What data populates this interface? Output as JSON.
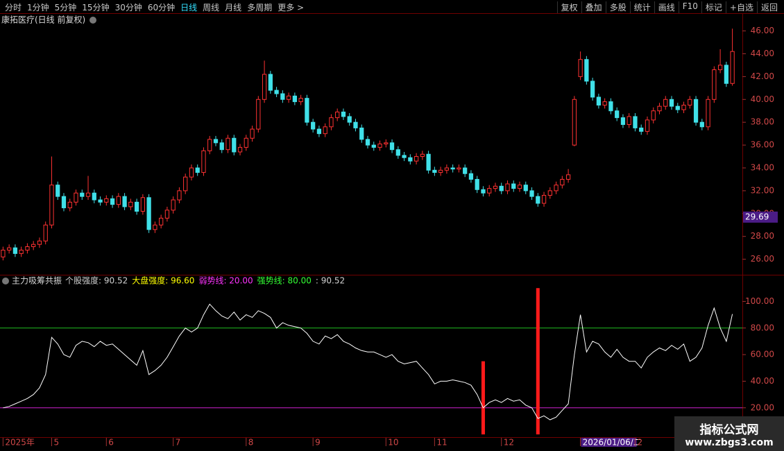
{
  "toolbar": {
    "left": [
      "分时",
      "1分钟",
      "5分钟",
      "15分钟",
      "30分钟",
      "60分钟",
      "日线",
      "周线",
      "月线",
      "多周期",
      "更多 >"
    ],
    "right": [
      "复权",
      "叠加",
      "多股",
      "统计",
      "画线",
      "F10",
      "标记",
      "+自选",
      "返回"
    ]
  },
  "chart_data": [
    {
      "type": "candlestick",
      "title": "康拓医疗(日线 前复权)",
      "up_color": "#ff3232",
      "down_color": "#40e0e8",
      "open": [
        26.2,
        26.8,
        27.0,
        26.5,
        26.8,
        27.1,
        27.3,
        27.6,
        29.0,
        32.5,
        31.5,
        30.5,
        31.0,
        31.8,
        31.5,
        31.8,
        31.2,
        31.0,
        31.3,
        30.8,
        31.5,
        30.6,
        31.0,
        30.2,
        31.4,
        28.6,
        29.0,
        29.6,
        30.3,
        31.2,
        32.0,
        33.2,
        34.0,
        33.6,
        35.5,
        36.5,
        36.2,
        35.6,
        36.6,
        35.4,
        35.8,
        36.6,
        37.4,
        40.0,
        42.2,
        40.8,
        40.5,
        40.0,
        40.3,
        39.8,
        40.1,
        38.0,
        37.4,
        37.0,
        37.6,
        38.4,
        38.9,
        38.5,
        38.0,
        37.5,
        36.5,
        36.0,
        35.8,
        36.1,
        36.2,
        35.6,
        35.1,
        34.9,
        34.6,
        35.0,
        35.2,
        33.8,
        33.6,
        33.8,
        34.0,
        33.9,
        34.0,
        33.5,
        33.0,
        32.1,
        31.8,
        32.2,
        32.4,
        32.0,
        32.6,
        32.2,
        32.5,
        32.0,
        31.5,
        30.9,
        31.6,
        32.0,
        32.5,
        33.0,
        36.0,
        42.0,
        43.5,
        41.6,
        40.2,
        39.5,
        39.8,
        39.0,
        38.4,
        37.8,
        38.5,
        37.5,
        37.2,
        38.2,
        39.0,
        39.4,
        40.0,
        39.4,
        39.1,
        39.5,
        40.0,
        38.0,
        37.6,
        40.0,
        42.6,
        43.0,
        41.4
      ],
      "high": [
        27.1,
        27.3,
        27.3,
        27.1,
        27.4,
        27.6,
        27.9,
        29.3,
        35.0,
        32.8,
        31.8,
        31.3,
        32.1,
        32.1,
        33.3,
        32.1,
        31.5,
        31.6,
        31.6,
        31.8,
        31.8,
        31.3,
        31.3,
        31.7,
        31.7,
        29.3,
        29.9,
        30.6,
        31.5,
        32.3,
        33.5,
        34.3,
        34.3,
        35.8,
        36.8,
        36.8,
        36.5,
        36.9,
        36.9,
        36.1,
        36.9,
        37.7,
        40.3,
        43.4,
        42.5,
        41.1,
        40.8,
        40.6,
        40.6,
        40.4,
        40.4,
        38.3,
        37.7,
        37.9,
        38.7,
        39.2,
        39.2,
        38.8,
        38.3,
        37.8,
        36.8,
        36.3,
        36.4,
        36.5,
        36.5,
        35.9,
        35.4,
        35.2,
        35.3,
        35.5,
        35.5,
        34.1,
        34.1,
        34.3,
        34.3,
        34.3,
        34.3,
        33.8,
        33.3,
        32.4,
        32.5,
        32.7,
        32.7,
        32.9,
        32.9,
        32.8,
        32.8,
        32.3,
        31.8,
        31.9,
        32.3,
        32.8,
        33.3,
        33.9,
        40.3,
        44.2,
        43.8,
        41.9,
        40.5,
        40.1,
        40.1,
        39.3,
        38.7,
        38.8,
        38.8,
        37.8,
        38.5,
        39.3,
        39.7,
        40.3,
        40.3,
        39.7,
        39.8,
        40.3,
        40.3,
        38.3,
        40.3,
        42.9,
        44.4,
        43.3,
        46.2
      ],
      "low": [
        25.9,
        26.5,
        26.2,
        26.2,
        26.5,
        26.8,
        27.0,
        27.3,
        28.7,
        31.2,
        30.2,
        30.2,
        30.7,
        31.2,
        31.2,
        30.9,
        30.7,
        30.7,
        30.5,
        30.5,
        30.3,
        30.3,
        29.9,
        29.9,
        28.3,
        28.3,
        28.7,
        29.3,
        30.0,
        30.9,
        31.7,
        32.9,
        33.3,
        33.3,
        35.2,
        35.9,
        35.3,
        35.3,
        35.1,
        35.1,
        35.5,
        36.3,
        37.1,
        39.7,
        40.5,
        40.2,
        39.7,
        39.7,
        39.5,
        39.5,
        37.7,
        37.1,
        36.7,
        36.7,
        37.3,
        38.1,
        38.2,
        37.7,
        37.2,
        36.2,
        35.7,
        35.5,
        35.5,
        35.8,
        35.3,
        34.8,
        34.6,
        34.3,
        34.3,
        34.7,
        33.5,
        33.3,
        33.3,
        33.5,
        33.6,
        33.6,
        33.2,
        32.7,
        31.8,
        31.5,
        31.5,
        31.9,
        31.7,
        31.7,
        31.9,
        31.9,
        31.7,
        31.2,
        30.6,
        30.6,
        31.3,
        31.7,
        32.2,
        32.7,
        35.9,
        41.7,
        41.3,
        39.9,
        39.2,
        39.2,
        38.7,
        38.1,
        37.5,
        37.5,
        37.2,
        36.9,
        36.9,
        37.9,
        38.7,
        39.1,
        39.1,
        38.8,
        38.8,
        39.2,
        37.7,
        37.3,
        37.3,
        39.7,
        42.3,
        41.1,
        41.2
      ],
      "close": [
        26.8,
        27.0,
        26.5,
        26.8,
        27.1,
        27.3,
        27.6,
        29.0,
        32.5,
        31.5,
        30.5,
        31.0,
        31.8,
        31.5,
        31.8,
        31.2,
        31.0,
        31.3,
        30.8,
        31.5,
        30.6,
        31.0,
        30.2,
        31.4,
        28.6,
        29.0,
        29.6,
        30.3,
        31.2,
        32.0,
        33.2,
        34.0,
        33.6,
        35.5,
        36.5,
        36.2,
        35.6,
        36.6,
        35.4,
        35.8,
        36.6,
        37.4,
        40.0,
        42.2,
        40.8,
        40.5,
        40.0,
        40.3,
        39.8,
        40.1,
        38.0,
        37.4,
        37.0,
        37.6,
        38.4,
        38.9,
        38.5,
        38.0,
        37.5,
        36.5,
        36.0,
        35.8,
        36.1,
        36.2,
        35.6,
        35.1,
        34.9,
        34.6,
        35.0,
        35.2,
        33.8,
        33.6,
        33.8,
        34.0,
        33.9,
        34.0,
        33.5,
        33.0,
        32.1,
        31.8,
        32.2,
        32.4,
        32.0,
        32.6,
        32.2,
        32.5,
        32.0,
        31.5,
        30.9,
        31.6,
        32.0,
        32.5,
        33.0,
        33.4,
        40.0,
        43.5,
        41.6,
        40.2,
        39.5,
        39.8,
        39.0,
        38.4,
        37.8,
        38.5,
        37.5,
        37.2,
        38.2,
        39.0,
        39.4,
        40.0,
        39.4,
        39.1,
        39.5,
        40.0,
        38.0,
        37.6,
        40.0,
        42.6,
        43.0,
        41.4,
        44.2
      ],
      "ylim": [
        24.7,
        46.4
      ],
      "yticks": [
        {
          "value": 26,
          "label": "26.00"
        },
        {
          "value": 28,
          "label": "28.00"
        },
        {
          "value": 30,
          "label": "30.00"
        },
        {
          "value": 32,
          "label": "32.00"
        },
        {
          "value": 34,
          "label": "34.00"
        },
        {
          "value": 36,
          "label": "36.00"
        },
        {
          "value": 38,
          "label": "38.00"
        },
        {
          "value": 40,
          "label": "40.00"
        },
        {
          "value": 42,
          "label": "42.00"
        },
        {
          "value": 44,
          "label": "44.00"
        },
        {
          "value": 46,
          "label": "46.00"
        }
      ],
      "xlim": [
        -0.5,
        120.5
      ],
      "xticks": [
        {
          "value": 0,
          "label": "2025年"
        },
        {
          "value": 8,
          "label": "5"
        },
        {
          "value": 17,
          "label": "6"
        },
        {
          "value": 28,
          "label": "7"
        },
        {
          "value": 40,
          "label": "8"
        },
        {
          "value": 51,
          "label": "9"
        },
        {
          "value": 63,
          "label": "10"
        },
        {
          "value": 71,
          "label": "11"
        },
        {
          "value": 82,
          "label": "12"
        },
        {
          "value": 95,
          "label": "2026/01/06/二"
        },
        {
          "value": 104,
          "label": "2"
        }
      ],
      "price_tag": 29.69
    },
    {
      "type": "line",
      "title": "主力吸筹共振",
      "legend": [
        {
          "text": "个股强度: 90.52",
          "color": "#d0d0d0"
        },
        {
          "text": "大盘强度: 96.60",
          "color": "#ffff00"
        },
        {
          "text": "弱势线: 20.00",
          "color": "#ff33ff"
        },
        {
          "text": "强势线: 80.00",
          "color": "#33ff33"
        },
        {
          "text": ": 90.52",
          "color": "#d0d0d0"
        }
      ],
      "series": [
        {
          "color": "#ffffff",
          "values": [
            20,
            21,
            23,
            25,
            27,
            30,
            35,
            45,
            73,
            68,
            60,
            58,
            67,
            70,
            69,
            66,
            70,
            67,
            68,
            64,
            60,
            56,
            52,
            63,
            45,
            48,
            52,
            58,
            66,
            74,
            80,
            77,
            80,
            90,
            98,
            93,
            89,
            87,
            92,
            86,
            90,
            88,
            93,
            91,
            88,
            80,
            84,
            82,
            81,
            80,
            76,
            70,
            68,
            74,
            72,
            75,
            70,
            68,
            65,
            63,
            62,
            62,
            60,
            58,
            60,
            55,
            53,
            54,
            55,
            50,
            45,
            38,
            40,
            40,
            41,
            40,
            39,
            37,
            30,
            20,
            24,
            26,
            24,
            27,
            25,
            26,
            22,
            20,
            12,
            14,
            11,
            13,
            18,
            23,
            60,
            90,
            62,
            70,
            68,
            62,
            58,
            64,
            58,
            55,
            55,
            50,
            58,
            62,
            65,
            63,
            67,
            64,
            68,
            55,
            58,
            65,
            82,
            95,
            80,
            70,
            90.52
          ]
        }
      ],
      "bars": {
        "color": "#ff1a1a",
        "x": [
          79,
          88
        ],
        "values": [
          55,
          110
        ]
      },
      "hlines": [
        {
          "value": 20,
          "color": "#d020d0"
        },
        {
          "value": 80,
          "color": "#20c020"
        }
      ],
      "ylim": [
        -1,
        119
      ],
      "yticks": [
        {
          "value": 20,
          "label": "20.00"
        },
        {
          "value": 40,
          "label": "40.00"
        },
        {
          "value": 60,
          "label": "60.00"
        },
        {
          "value": 80,
          "label": "80.00"
        },
        {
          "value": 100,
          "label": "100.00"
        }
      ]
    }
  ],
  "watermark": {
    "title": "指标公式网",
    "url": "www.zbgs3.com"
  }
}
